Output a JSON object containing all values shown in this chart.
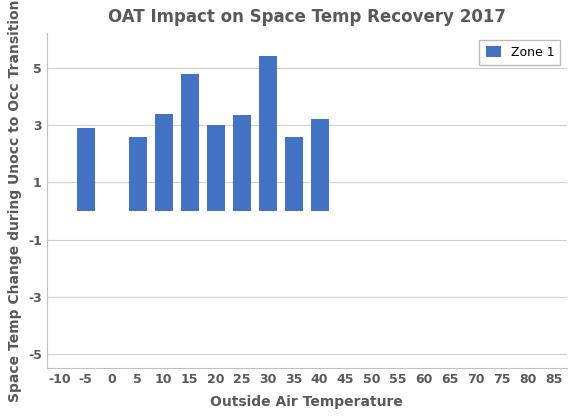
{
  "title": "OAT Impact on Space Temp Recovery 2017",
  "xlabel": "Outside Air Temperature",
  "ylabel": "Space Temp Change during Unocc to Occ Transition",
  "bar_positions": [
    -5,
    5,
    10,
    15,
    20,
    25,
    30,
    35,
    40
  ],
  "bar_values": [
    2.9,
    2.6,
    3.4,
    4.8,
    3.0,
    3.35,
    5.4,
    2.6,
    3.2
  ],
  "bar_color": "#4472C4",
  "bar_width": 3.5,
  "xlim": [
    -12.5,
    87.5
  ],
  "xticks": [
    -10,
    -5,
    0,
    5,
    10,
    15,
    20,
    25,
    30,
    35,
    40,
    45,
    50,
    55,
    60,
    65,
    70,
    75,
    80,
    85
  ],
  "ylim": [
    -5.5,
    6.2
  ],
  "yticks": [
    -5,
    -3,
    -1,
    1,
    3,
    5
  ],
  "legend_label": "Zone 1",
  "background_color": "#ffffff",
  "grid_color": "#d0d0d0",
  "title_fontsize": 12,
  "label_fontsize": 10,
  "tick_fontsize": 9,
  "axis_text_color": "#595959"
}
